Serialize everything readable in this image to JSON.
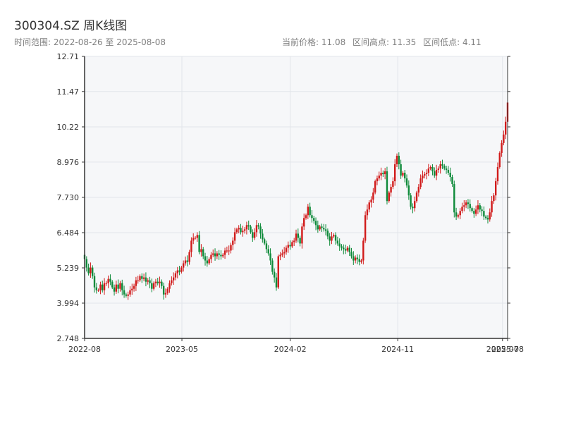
{
  "header": {
    "title": "300304.SZ 周K线图",
    "date_range": "时间范围: 2022-08-26 至 2025-08-08",
    "current_price": "当前价格: 11.08",
    "high": "区间高点: 11.35",
    "low": "区间低点: 4.11"
  },
  "colors": {
    "up": "#d11a1a",
    "down": "#0e8a3a",
    "plot_bg": "#f6f7f9",
    "grid": "#e2e5ea",
    "axis": "#333333"
  },
  "chart_data": {
    "type": "candlestick",
    "title": "300304.SZ 周K线图",
    "xlabel": "",
    "ylabel": "",
    "x_ticks": [
      "2022-08",
      "2023-05",
      "2024-02",
      "2024-11",
      "2025-07",
      "2025-08"
    ],
    "y_ticks": [
      "2.748",
      "3.994",
      "5.239",
      "6.484",
      "7.730",
      "8.976",
      "10.22",
      "11.47",
      "12.71"
    ],
    "ylim": [
      2.748,
      12.71
    ],
    "x_range": [
      "2022-08-26",
      "2025-08-08"
    ],
    "grid": true,
    "weekly_closes": [
      5.55,
      5.25,
      5.05,
      5.25,
      4.95,
      4.55,
      4.45,
      4.45,
      4.65,
      4.45,
      4.7,
      4.7,
      4.85,
      4.75,
      4.55,
      4.4,
      4.65,
      4.5,
      4.7,
      4.45,
      4.3,
      4.25,
      4.3,
      4.45,
      4.5,
      4.6,
      4.8,
      4.8,
      4.95,
      4.85,
      4.9,
      4.75,
      4.8,
      4.7,
      4.5,
      4.7,
      4.75,
      4.7,
      4.75,
      4.6,
      4.3,
      4.35,
      4.5,
      4.7,
      4.8,
      4.9,
      5.05,
      5.15,
      5.1,
      5.25,
      5.4,
      5.5,
      5.45,
      5.8,
      6.2,
      6.3,
      6.3,
      6.4,
      5.8,
      5.9,
      5.65,
      5.5,
      5.4,
      5.55,
      5.7,
      5.75,
      5.65,
      5.75,
      5.7,
      5.65,
      5.7,
      5.85,
      5.85,
      5.85,
      6.05,
      6.2,
      6.5,
      6.6,
      6.65,
      6.5,
      6.55,
      6.6,
      6.75,
      6.7,
      6.5,
      6.3,
      6.5,
      6.75,
      6.7,
      6.45,
      6.25,
      6.1,
      5.9,
      5.75,
      5.5,
      5.1,
      4.9,
      4.55,
      5.65,
      5.7,
      5.75,
      5.8,
      5.95,
      6.05,
      6.0,
      6.15,
      6.2,
      6.45,
      6.3,
      6.1,
      6.7,
      7.0,
      7.1,
      7.4,
      7.1,
      7.0,
      6.9,
      6.75,
      6.6,
      6.7,
      6.65,
      6.6,
      6.55,
      6.35,
      6.2,
      6.35,
      6.4,
      6.2,
      6.1,
      6.0,
      5.95,
      5.9,
      5.85,
      5.95,
      5.8,
      5.65,
      5.5,
      5.6,
      5.55,
      5.45,
      5.5,
      6.2,
      7.1,
      7.3,
      7.55,
      7.65,
      7.9,
      8.3,
      8.4,
      8.5,
      8.6,
      8.55,
      8.65,
      7.6,
      7.9,
      8.1,
      8.3,
      8.9,
      9.2,
      8.9,
      8.5,
      8.6,
      8.4,
      8.15,
      7.8,
      7.4,
      7.35,
      7.6,
      7.9,
      8.1,
      8.4,
      8.5,
      8.55,
      8.6,
      8.75,
      8.8,
      8.65,
      8.5,
      8.7,
      8.75,
      8.9,
      8.85,
      8.75,
      8.7,
      8.6,
      8.45,
      8.2,
      7.2,
      7.05,
      7.1,
      7.25,
      7.4,
      7.45,
      7.55,
      7.5,
      7.35,
      7.25,
      7.15,
      7.3,
      7.45,
      7.3,
      7.25,
      7.05,
      7.0,
      6.95,
      7.2,
      7.6,
      7.8,
      8.3,
      8.8,
      9.3,
      9.65,
      9.95,
      10.4,
      11.08
    ]
  }
}
